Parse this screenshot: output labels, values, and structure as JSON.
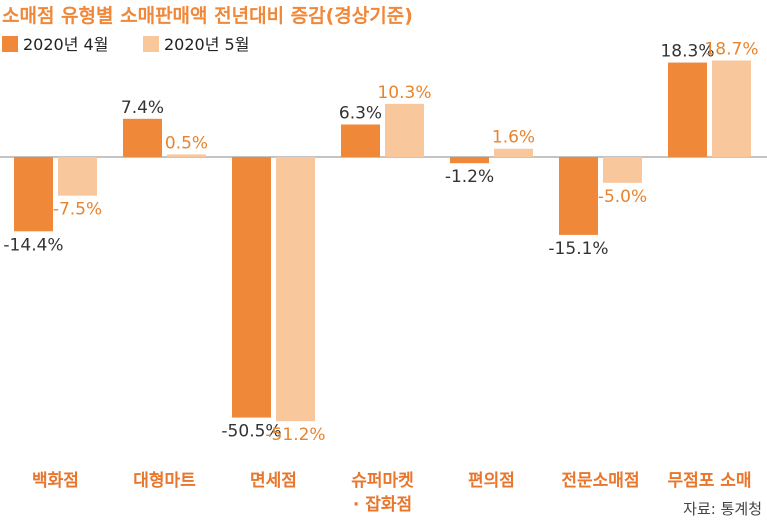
{
  "chart_data": {
    "type": "bar",
    "title": "소매점 유형별 소매판매액 전년대비 증감(경상기준)",
    "categories": [
      [
        "백화점"
      ],
      [
        "대형마트"
      ],
      [
        "면세점"
      ],
      [
        "슈퍼마켓",
        "· 잡화점"
      ],
      [
        "편의점"
      ],
      [
        "전문소매점"
      ],
      [
        "무점포 소매"
      ]
    ],
    "series": [
      {
        "name": "2020년 4월",
        "color": "#f0883a",
        "values": [
          -14.4,
          7.4,
          -50.5,
          6.3,
          -1.2,
          -15.1,
          18.3
        ],
        "labels": [
          "-14.4%",
          "7.4%",
          "-50.5%",
          "6.3%",
          "-1.2%",
          "-15.1%",
          "18.3%"
        ]
      },
      {
        "name": "2020년 5월",
        "color": "#f8c79c",
        "values": [
          -7.5,
          0.5,
          -51.2,
          10.3,
          1.6,
          -5.0,
          18.7
        ],
        "labels": [
          "-7.5%",
          "0.5%",
          "-51.2%",
          "10.3%",
          "1.6%",
          "-5.0%",
          "18.7%"
        ]
      }
    ],
    "legend_position": "top-left",
    "grid": false,
    "colors": {
      "title": "#f0883a",
      "category_label": "#e8762d",
      "axis": "#888888"
    }
  },
  "source": "자료: 통계청"
}
